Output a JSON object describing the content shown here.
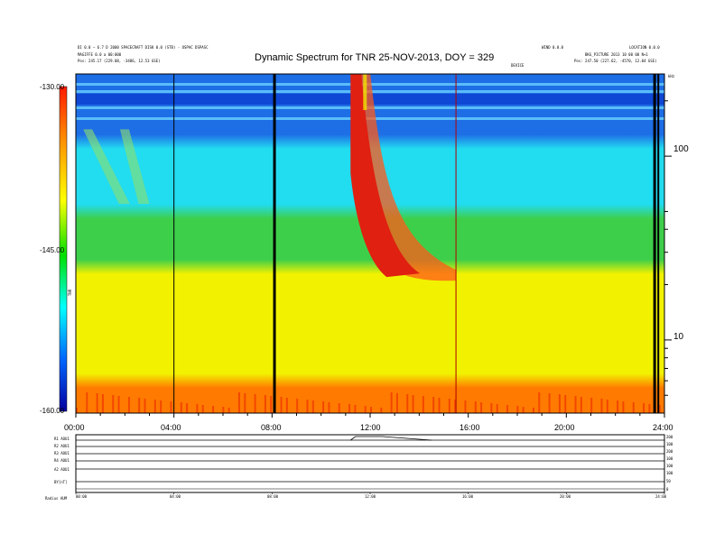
{
  "chart_data": {
    "type": "heatmap",
    "title": "Dynamic Spectrum for TNR 25-NOV-2013, DOY = 329",
    "x_tick_labels": [
      "00:00",
      "04:00",
      "08:00",
      "12:00",
      "16:00",
      "20:00",
      "24:00"
    ],
    "x_range_hours": [
      0,
      24
    ],
    "colorbar_tick_labels": [
      "-130.00",
      "-145.00",
      "-160.00"
    ],
    "colorbar_range": [
      -160,
      -130
    ],
    "colorbar_label": "TNR",
    "right_axis_tick_labels": [
      "100",
      "10"
    ],
    "right_axis_scale": "log",
    "right_axis_unit": "kHz",
    "right_axis_range_khz": [
      4,
      280
    ],
    "bands": [
      {
        "khz_top": 280,
        "khz_bot": 120,
        "color": "#1e6ee6",
        "note": "blue striped upper band"
      },
      {
        "khz_top": 120,
        "khz_bot": 50,
        "color": "#22dcf0"
      },
      {
        "khz_top": 50,
        "khz_bot": 25,
        "color": "#3ecf4a"
      },
      {
        "khz_top": 25,
        "khz_bot": 6,
        "color": "#f2f200"
      },
      {
        "khz_top": 6,
        "khz_bot": 4,
        "color": "#ff7a00"
      }
    ],
    "events": [
      {
        "type": "radio_burst",
        "start_hour": 11.2,
        "end_hour": 15.5,
        "freq_start_khz": 280,
        "freq_end_khz": 22,
        "color": "#e02010"
      }
    ],
    "data_gaps_hours": [
      4.0,
      8.1,
      15.5,
      23.6
    ],
    "header_left": [
      "DI 0.0 — 6.7 D 2000 SPACECRAFT DISK 0.0 (STB) - OSPAC DSPASC",
      "MAGIFFE 0.0 a 00:000",
      "Pos:   245.17 (229.08, -3486, 12.53 GSE)"
    ],
    "header_right": [
      "WIND 0.0.0",
      "LOCATION 0.0.0",
      "BKG_PICTURE 2013 10 00 00 N+1",
      "Pos:   247.50 (227.62, -4570, 12.04 GSE)",
      "DEVICE"
    ],
    "lower_panel_left_labels": [
      "R1 AOU1",
      "R2 AOU1",
      "R3 AOU1",
      "R4 AOU1",
      "A2 AOU1",
      "BY[nT]",
      "Radius  AUM"
    ],
    "lower_panel_right_labels": [
      "200",
      "100",
      "200",
      "100",
      "100",
      "100",
      "50",
      "0"
    ],
    "lower_x_tick_labels": [
      "00:00",
      "04:00",
      "08:00",
      "12:00",
      "16:00",
      "20:00",
      "24:00"
    ]
  }
}
